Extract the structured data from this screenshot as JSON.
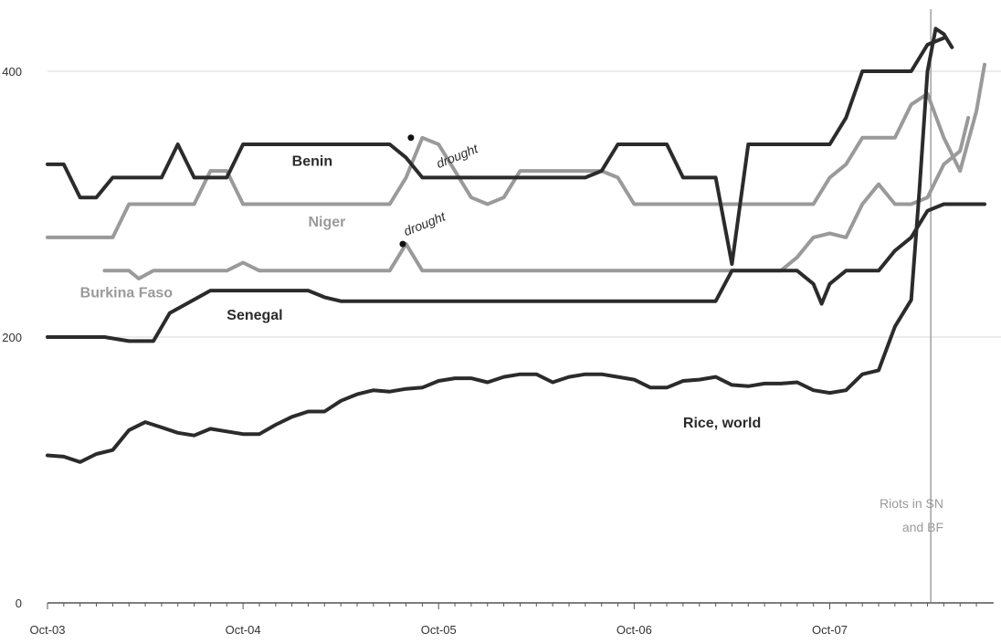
{
  "chart_data": {
    "type": "line",
    "title": "",
    "xlabel": "",
    "ylabel": "",
    "ylim": [
      0,
      400
    ],
    "yticks": [
      0,
      200,
      400
    ],
    "x_tick_labels": [
      "Oct-03",
      "Oct-04",
      "Oct-05",
      "Oct-06",
      "Oct-07"
    ],
    "x_range_months": [
      0,
      57.5
    ],
    "grid_y": true,
    "colors": {
      "dark": "#2b2b2b",
      "grey": "#9a9a9a",
      "gridline": "#e6e6e6",
      "axis": "#555555"
    },
    "series": [
      {
        "name": "Benin",
        "color": "#2b2b2b",
        "points": [
          [
            0,
            330
          ],
          [
            1,
            330
          ],
          [
            2,
            305
          ],
          [
            3,
            305
          ],
          [
            4,
            320
          ],
          [
            7,
            320
          ],
          [
            8,
            345
          ],
          [
            9,
            320
          ],
          [
            11,
            320
          ],
          [
            12,
            345
          ],
          [
            21,
            345
          ],
          [
            22,
            335
          ],
          [
            23,
            320
          ],
          [
            33,
            320
          ],
          [
            34,
            325
          ],
          [
            35,
            345
          ],
          [
            38,
            345
          ],
          [
            39,
            320
          ],
          [
            41,
            320
          ],
          [
            42,
            255
          ],
          [
            43,
            345
          ],
          [
            48,
            345
          ],
          [
            49,
            365
          ],
          [
            50,
            400
          ],
          [
            53,
            400
          ],
          [
            54,
            420
          ],
          [
            55,
            425
          ]
        ]
      },
      {
        "name": "Niger",
        "color": "#9a9a9a",
        "points": [
          [
            0,
            275
          ],
          [
            4,
            275
          ],
          [
            5,
            300
          ],
          [
            9,
            300
          ],
          [
            10,
            325
          ],
          [
            11,
            325
          ],
          [
            12,
            300
          ],
          [
            21,
            300
          ],
          [
            22,
            320
          ],
          [
            23,
            350
          ],
          [
            24,
            345
          ],
          [
            25,
            325
          ],
          [
            26,
            305
          ],
          [
            27,
            300
          ],
          [
            28,
            305
          ],
          [
            29,
            325
          ],
          [
            34,
            325
          ],
          [
            35,
            320
          ],
          [
            36,
            300
          ],
          [
            47,
            300
          ],
          [
            48,
            320
          ],
          [
            49,
            330
          ],
          [
            50,
            350
          ],
          [
            52,
            350
          ],
          [
            53,
            375
          ],
          [
            54,
            383
          ],
          [
            55,
            350
          ],
          [
            56,
            325
          ],
          [
            57,
            370
          ],
          [
            57.5,
            405
          ]
        ]
      },
      {
        "name": "Burkina Faso",
        "color": "#9a9a9a",
        "points": [
          [
            3.5,
            250
          ],
          [
            5,
            250
          ],
          [
            5.6,
            244
          ],
          [
            6.5,
            250
          ],
          [
            11,
            250
          ],
          [
            12,
            256
          ],
          [
            13,
            250
          ],
          [
            21,
            250
          ],
          [
            22,
            270
          ],
          [
            23,
            250
          ],
          [
            42,
            250
          ],
          [
            45,
            250
          ],
          [
            46,
            260
          ],
          [
            47,
            275
          ],
          [
            48,
            278
          ],
          [
            49,
            275
          ],
          [
            50,
            300
          ],
          [
            51,
            315
          ],
          [
            52,
            300
          ],
          [
            53,
            300
          ],
          [
            54,
            305
          ],
          [
            55,
            330
          ],
          [
            56,
            340
          ],
          [
            56.5,
            365
          ]
        ]
      },
      {
        "name": "Senegal",
        "color": "#2b2b2b",
        "points": [
          [
            0,
            200
          ],
          [
            3.5,
            200
          ],
          [
            5,
            197
          ],
          [
            6.5,
            197
          ],
          [
            7.5,
            218
          ],
          [
            10,
            235
          ],
          [
            16,
            235
          ],
          [
            17,
            230
          ],
          [
            18,
            227
          ],
          [
            41,
            227
          ],
          [
            42,
            250
          ],
          [
            46,
            250
          ],
          [
            47,
            240
          ],
          [
            47.5,
            225
          ],
          [
            48,
            240
          ],
          [
            49,
            250
          ],
          [
            51,
            250
          ],
          [
            52,
            265
          ],
          [
            53,
            275
          ],
          [
            54,
            295
          ],
          [
            55,
            300
          ],
          [
            57.5,
            300
          ]
        ]
      },
      {
        "name": "Rice, world",
        "color": "#2b2b2b",
        "points": [
          [
            0,
            111
          ],
          [
            1,
            110
          ],
          [
            2,
            106
          ],
          [
            3,
            112
          ],
          [
            4,
            115
          ],
          [
            5,
            130
          ],
          [
            6,
            136
          ],
          [
            7,
            132
          ],
          [
            8,
            128
          ],
          [
            9,
            126
          ],
          [
            10,
            131
          ],
          [
            11,
            129
          ],
          [
            12,
            127
          ],
          [
            13,
            127
          ],
          [
            14,
            134
          ],
          [
            15,
            140
          ],
          [
            16,
            144
          ],
          [
            17,
            144
          ],
          [
            18,
            152
          ],
          [
            19,
            157
          ],
          [
            20,
            160
          ],
          [
            21,
            159
          ],
          [
            22,
            161
          ],
          [
            23,
            162
          ],
          [
            24,
            167
          ],
          [
            25,
            169
          ],
          [
            26,
            169
          ],
          [
            27,
            166
          ],
          [
            28,
            170
          ],
          [
            29,
            172
          ],
          [
            30,
            172
          ],
          [
            31,
            166
          ],
          [
            32,
            170
          ],
          [
            33,
            172
          ],
          [
            34,
            172
          ],
          [
            35,
            170
          ],
          [
            36,
            168
          ],
          [
            37,
            162
          ],
          [
            38,
            162
          ],
          [
            39,
            167
          ],
          [
            40,
            168
          ],
          [
            41,
            170
          ],
          [
            42,
            164
          ],
          [
            43,
            163
          ],
          [
            44,
            165
          ],
          [
            45,
            165
          ],
          [
            46,
            166
          ],
          [
            47,
            160
          ],
          [
            48,
            158
          ],
          [
            49,
            160
          ],
          [
            50,
            172
          ],
          [
            51,
            175
          ],
          [
            52,
            208
          ],
          [
            53,
            228
          ],
          [
            53.5,
            310
          ],
          [
            54,
            400
          ],
          [
            54.5,
            432
          ],
          [
            55,
            428
          ],
          [
            55.5,
            418
          ]
        ]
      }
    ],
    "annotations": [
      {
        "text": "Benin",
        "series": "Benin",
        "at": [
          15,
          329
        ],
        "color": "#2b2b2b"
      },
      {
        "text": "Niger",
        "series": "Niger",
        "at": [
          16,
          283
        ],
        "color": "#9a9a9a"
      },
      {
        "text": "Burkina Faso",
        "series": "Burkina Faso",
        "at": [
          2,
          230
        ],
        "color": "#9a9a9a"
      },
      {
        "text": "Senegal",
        "series": "Senegal",
        "at": [
          11,
          213
        ],
        "color": "#2b2b2b"
      },
      {
        "text": "Rice, world",
        "series": "Rice, world",
        "at": [
          39,
          132
        ],
        "color": "#2b2b2b"
      },
      {
        "text": "drought",
        "at": [
          24,
          327
        ],
        "color": "#2b2b2b"
      },
      {
        "text": "drought",
        "at": [
          22,
          276
        ],
        "color": "#2b2b2b"
      }
    ],
    "markers": [
      {
        "at": [
          22.3,
          350
        ]
      },
      {
        "at": [
          21.8,
          270
        ]
      }
    ],
    "event_line": {
      "x": 54.2,
      "label_lines": [
        "Riots in SN",
        "and BF"
      ]
    }
  }
}
